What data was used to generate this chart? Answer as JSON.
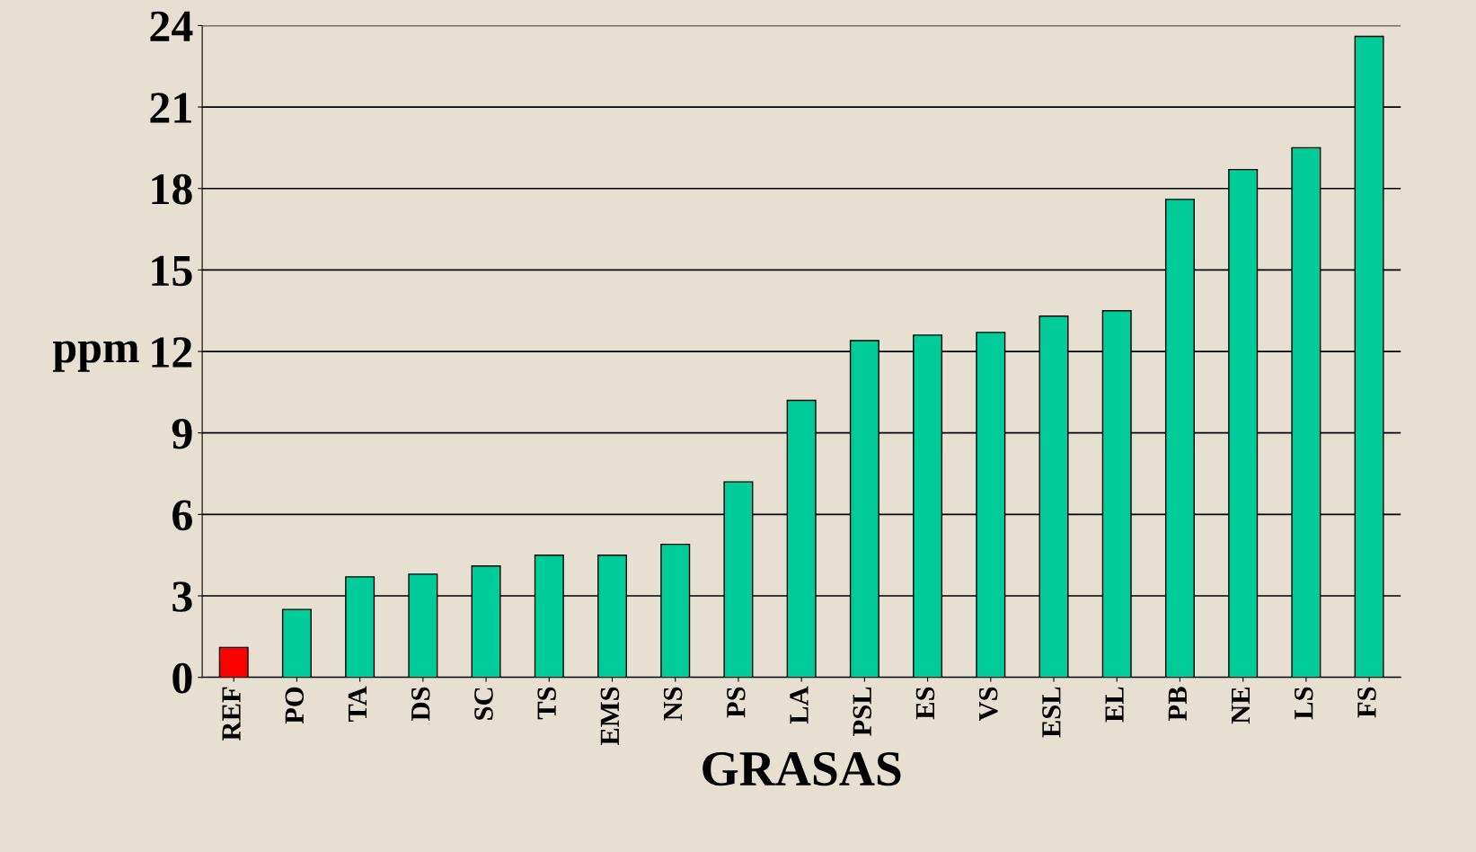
{
  "chart_data": {
    "type": "bar",
    "xlabel": "GRASAS",
    "ylabel": "ppm",
    "categories": [
      "REF",
      "PO",
      "TA",
      "DS",
      "SC",
      "TS",
      "EMS",
      "NS",
      "PS",
      "LA",
      "PSL",
      "ES",
      "VS",
      "ESL",
      "EL",
      "PB",
      "NE",
      "LS",
      "FS"
    ],
    "values": [
      1.1,
      2.5,
      3.7,
      3.8,
      4.1,
      4.5,
      4.5,
      4.9,
      7.2,
      10.2,
      12.4,
      12.6,
      12.7,
      13.3,
      13.5,
      17.6,
      18.7,
      19.5,
      23.6
    ],
    "colors": [
      "#ff0000",
      "#00cc99",
      "#00cc99",
      "#00cc99",
      "#00cc99",
      "#00cc99",
      "#00cc99",
      "#00cc99",
      "#00cc99",
      "#00cc99",
      "#00cc99",
      "#00cc99",
      "#00cc99",
      "#00cc99",
      "#00cc99",
      "#00cc99",
      "#00cc99",
      "#00cc99",
      "#00cc99"
    ],
    "ylim": [
      0,
      24
    ],
    "yticks": [
      0,
      3,
      6,
      9,
      12,
      15,
      18,
      21,
      24
    ],
    "grid": "y",
    "legend": false
  }
}
